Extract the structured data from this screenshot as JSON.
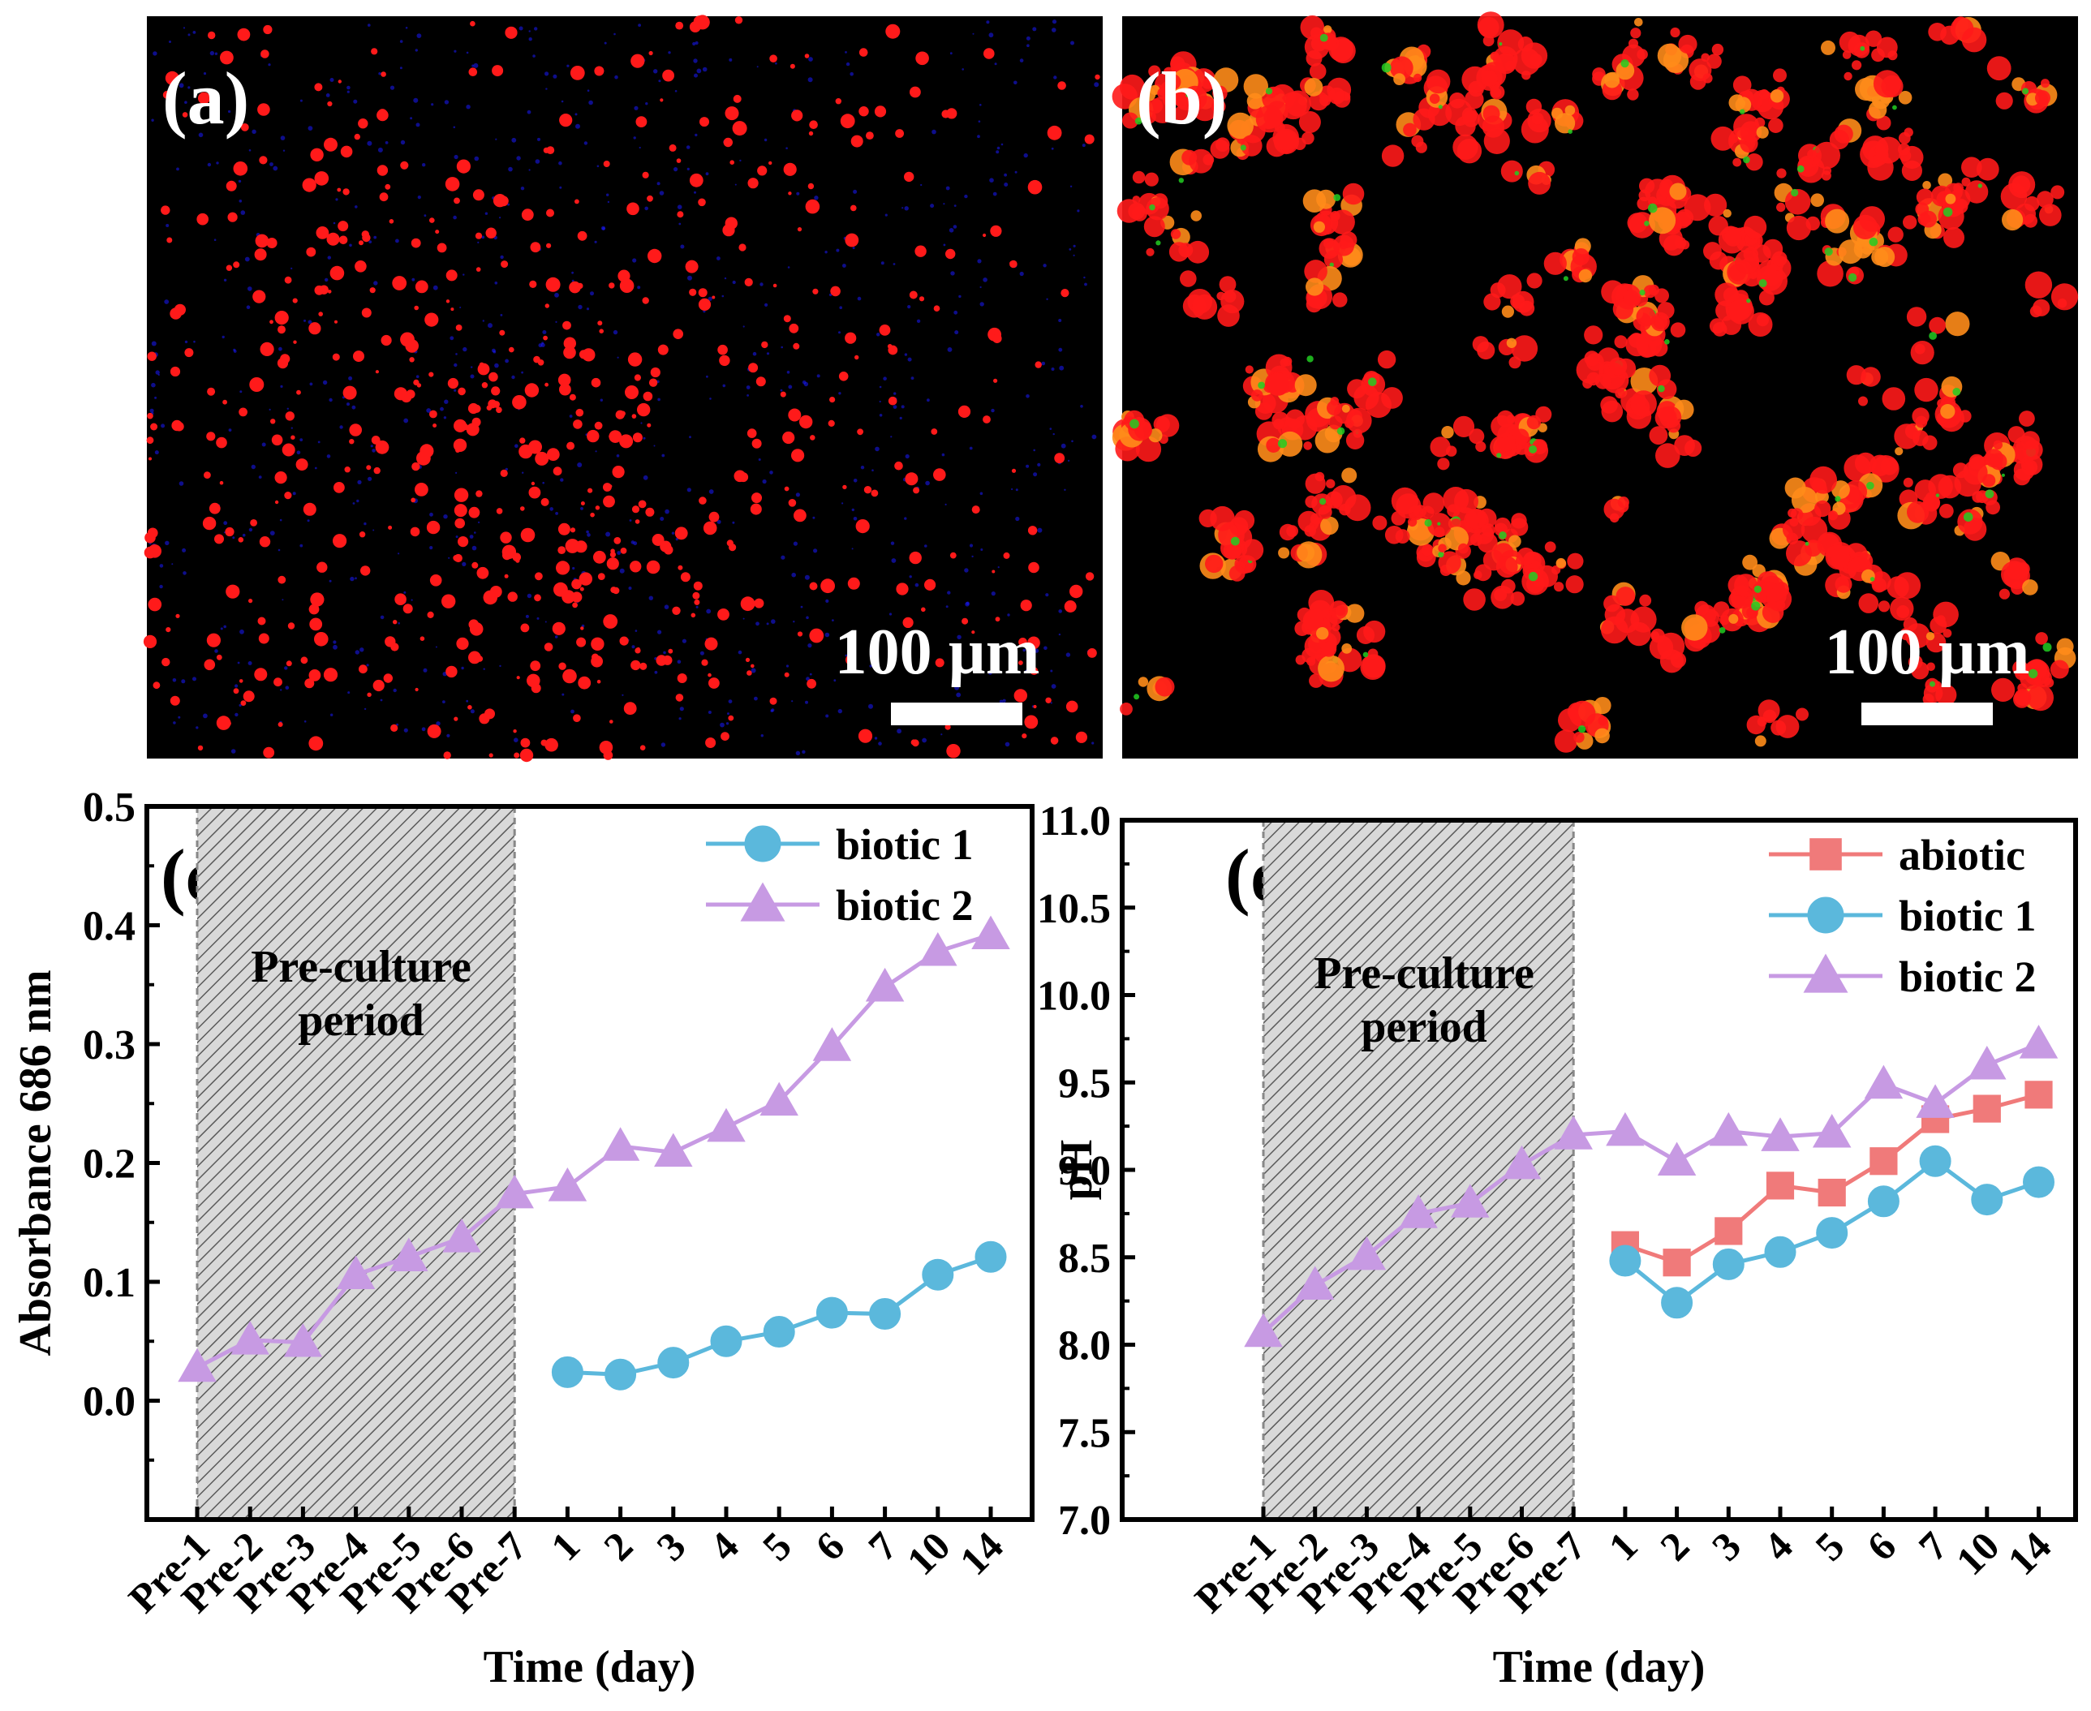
{
  "panels": {
    "a": {
      "label": "(a)",
      "scale_bar": "100 µm"
    },
    "b": {
      "label": "(b)",
      "scale_bar": "100 µm"
    }
  },
  "colors": {
    "abiotic": "#f07a7a",
    "biotic1": "#5bb8dc",
    "biotic2": "#c79ae3",
    "fluor_red": "#ff1a1a",
    "fluor_green": "#22cc22",
    "fluor_blue": "#1a1aff"
  },
  "chart_data": [
    {
      "panel": "(c)",
      "type": "line",
      "title": "",
      "xlabel": "Time (day)",
      "ylabel": "Absorbance 686 nm",
      "categories": [
        "Pre-1",
        "Pre-2",
        "Pre-3",
        "Pre-4",
        "Pre-5",
        "Pre-6",
        "Pre-7",
        "1",
        "2",
        "3",
        "4",
        "5",
        "6",
        "7",
        "10",
        "14"
      ],
      "ylim": [
        -0.1,
        0.5
      ],
      "yticks": [
        0.0,
        0.1,
        0.2,
        0.3,
        0.4,
        0.5
      ],
      "ytick_labels": [
        "0.0",
        "0.1",
        "0.2",
        "0.3",
        "0.4",
        "0.5"
      ],
      "annotation": [
        "Pre-culture",
        "period"
      ],
      "shaded_region": [
        "Pre-1",
        "Pre-7"
      ],
      "legend_position": "top-right",
      "series": [
        {
          "name": "biotic 1",
          "marker": "circle",
          "color_key": "biotic1",
          "values": [
            null,
            null,
            null,
            null,
            null,
            null,
            null,
            0.024,
            0.022,
            0.032,
            0.05,
            0.058,
            0.074,
            0.073,
            0.106,
            0.121
          ]
        },
        {
          "name": "biotic 2",
          "marker": "triangle",
          "color_key": "biotic2",
          "values": [
            0.028,
            0.051,
            0.049,
            0.106,
            0.121,
            0.137,
            0.174,
            0.18,
            0.214,
            0.209,
            0.23,
            0.252,
            0.298,
            0.348,
            0.378,
            0.392
          ]
        }
      ]
    },
    {
      "panel": "(d)",
      "type": "line",
      "title": "",
      "xlabel": "Time (day)",
      "ylabel": "pH",
      "categories": [
        "Pre-1",
        "Pre-2",
        "Pre-3",
        "Pre-4",
        "Pre-5",
        "Pre-6",
        "Pre-7",
        "1",
        "2",
        "3",
        "4",
        "5",
        "6",
        "7",
        "10",
        "14"
      ],
      "ylim": [
        7.0,
        11.0
      ],
      "yticks": [
        7.0,
        7.5,
        8.0,
        8.5,
        9.0,
        9.5,
        10.0,
        10.5,
        11.0
      ],
      "ytick_labels": [
        "7.0",
        "7.5",
        "8.0",
        "8.5",
        "9.0",
        "9.5",
        "10.0",
        "10.5",
        "11.0"
      ],
      "annotation": [
        "Pre-culture",
        "period"
      ],
      "shaded_region": [
        "Pre-1",
        "Pre-7"
      ],
      "legend_position": "top-right",
      "series": [
        {
          "name": "abiotic",
          "marker": "square",
          "color_key": "abiotic",
          "values": [
            null,
            null,
            null,
            null,
            null,
            null,
            null,
            8.57,
            8.47,
            8.65,
            8.91,
            8.87,
            9.05,
            9.29,
            9.35,
            9.43
          ]
        },
        {
          "name": "biotic 1",
          "marker": "circle",
          "color_key": "biotic1",
          "values": [
            null,
            null,
            null,
            null,
            null,
            null,
            null,
            8.48,
            8.24,
            8.46,
            8.53,
            8.64,
            8.82,
            9.05,
            8.83,
            8.93
          ]
        },
        {
          "name": "biotic 2",
          "marker": "triangle",
          "color_key": "biotic2",
          "values": [
            8.07,
            8.34,
            8.51,
            8.75,
            8.81,
            9.03,
            9.2,
            9.22,
            9.05,
            9.22,
            9.19,
            9.21,
            9.49,
            9.38,
            9.6,
            9.72
          ]
        }
      ]
    }
  ]
}
